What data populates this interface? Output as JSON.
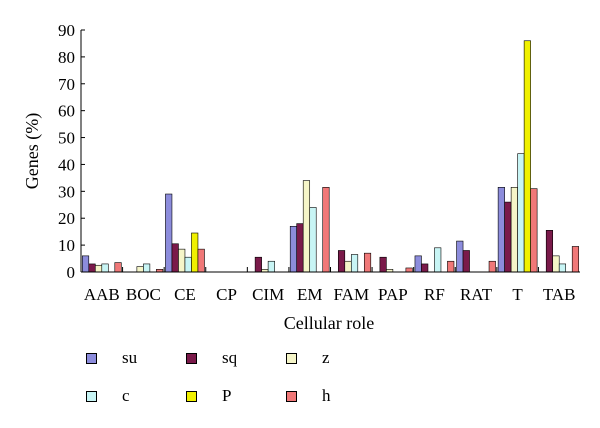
{
  "chart_data": {
    "type": "bar",
    "ylabel": "Genes (%)",
    "xlabel": "Cellular role",
    "ylim": [
      0,
      90
    ],
    "yticks": [
      0,
      10,
      20,
      30,
      40,
      50,
      60,
      70,
      80,
      90
    ],
    "grid": false,
    "legend_position": "bottom",
    "categories": [
      "AAB",
      "BOC",
      "CE",
      "CP",
      "CIM",
      "EM",
      "FAM",
      "PAP",
      "RF",
      "RAT",
      "T",
      "TAB"
    ],
    "series": [
      {
        "name": "su",
        "color": "#8c8cdc",
        "values": [
          6,
          0,
          29,
          0,
          0,
          17,
          0,
          0,
          6,
          11.5,
          31.5,
          0
        ]
      },
      {
        "name": "sq",
        "color": "#7a1a4a",
        "values": [
          3,
          0,
          10.5,
          0,
          5.5,
          18,
          8,
          5.5,
          3,
          8,
          26,
          15.5
        ]
      },
      {
        "name": "z",
        "color": "#f5f5c8",
        "values": [
          2.5,
          2,
          8.5,
          0,
          1,
          34,
          4,
          1,
          0,
          0,
          31.5,
          6
        ]
      },
      {
        "name": "c",
        "color": "#c8f5f5",
        "values": [
          3,
          3,
          5.5,
          0,
          4,
          24,
          6.5,
          0,
          9,
          0,
          44,
          3
        ]
      },
      {
        "name": "P",
        "color": "#f0f000",
        "values": [
          0,
          0,
          14.5,
          0,
          0,
          0,
          0,
          0,
          0,
          0,
          86,
          0
        ]
      },
      {
        "name": "h",
        "color": "#f07878",
        "values": [
          3.5,
          1,
          8.5,
          0,
          0,
          31.5,
          7,
          1.5,
          4,
          4,
          31,
          9.5
        ]
      }
    ]
  }
}
